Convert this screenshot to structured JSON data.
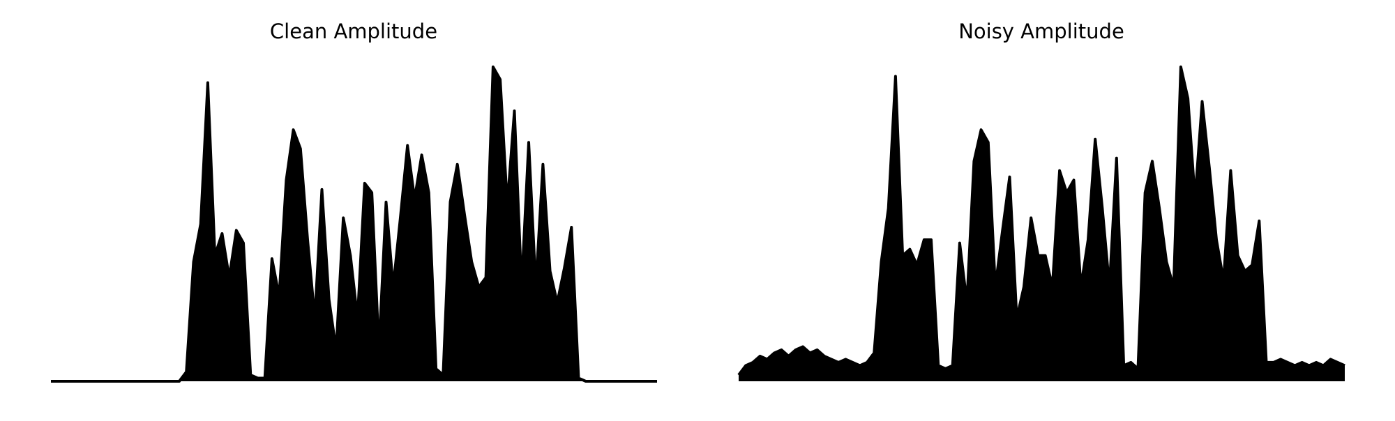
{
  "chart_data": [
    {
      "type": "line",
      "title": "Clean Amplitude",
      "color": "#000000",
      "ylim": [
        0,
        1
      ],
      "values": [
        0,
        0,
        0,
        0,
        0,
        0,
        0,
        0,
        0,
        0,
        0,
        0,
        0,
        0,
        0,
        0,
        0,
        0,
        0,
        0.03,
        0.38,
        0.5,
        0.95,
        0.4,
        0.47,
        0.33,
        0.48,
        0.44,
        0.02,
        0.01,
        0.01,
        0.39,
        0.27,
        0.64,
        0.8,
        0.74,
        0.45,
        0.2,
        0.61,
        0.26,
        0.1,
        0.52,
        0.4,
        0.2,
        0.63,
        0.6,
        0.1,
        0.57,
        0.3,
        0.52,
        0.75,
        0.58,
        0.72,
        0.6,
        0.04,
        0.02,
        0.57,
        0.69,
        0.53,
        0.38,
        0.3,
        0.33,
        1.0,
        0.96,
        0.56,
        0.86,
        0.3,
        0.76,
        0.3,
        0.69,
        0.35,
        0.25,
        0.36,
        0.49,
        0.01,
        0,
        0,
        0,
        0,
        0,
        0,
        0,
        0,
        0,
        0,
        0
      ]
    },
    {
      "type": "line",
      "title": "Noisy Amplitude",
      "color": "#000000",
      "ylim": [
        0,
        1
      ],
      "values": [
        0.02,
        0.05,
        0.06,
        0.08,
        0.07,
        0.09,
        0.1,
        0.08,
        0.1,
        0.11,
        0.09,
        0.1,
        0.08,
        0.07,
        0.06,
        0.07,
        0.06,
        0.05,
        0.06,
        0.09,
        0.38,
        0.55,
        0.97,
        0.4,
        0.42,
        0.37,
        0.45,
        0.45,
        0.05,
        0.04,
        0.05,
        0.44,
        0.25,
        0.7,
        0.8,
        0.76,
        0.3,
        0.48,
        0.65,
        0.2,
        0.3,
        0.52,
        0.4,
        0.4,
        0.3,
        0.67,
        0.6,
        0.64,
        0.3,
        0.45,
        0.77,
        0.55,
        0.3,
        0.71,
        0.05,
        0.06,
        0.04,
        0.6,
        0.7,
        0.55,
        0.38,
        0.3,
        1.0,
        0.9,
        0.58,
        0.89,
        0.68,
        0.45,
        0.32,
        0.67,
        0.4,
        0.35,
        0.37,
        0.51,
        0.06,
        0.06,
        0.07,
        0.06,
        0.05,
        0.06,
        0.05,
        0.06,
        0.05,
        0.07,
        0.06,
        0.05
      ]
    }
  ]
}
